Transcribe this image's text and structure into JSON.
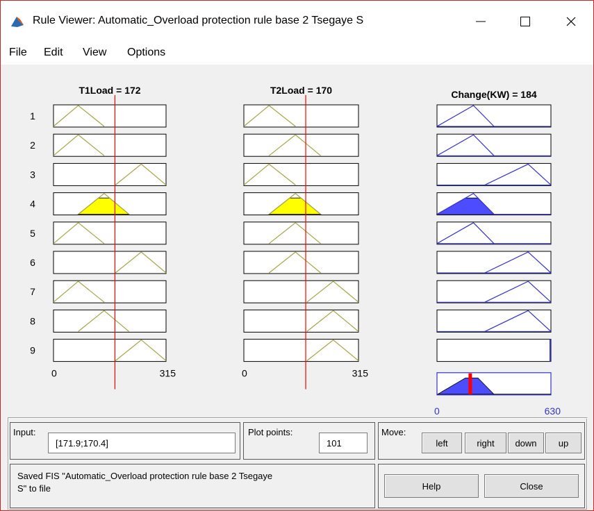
{
  "window": {
    "title": "Rule Viewer: Automatic_Overload protection rule base 2 Tsegaye S",
    "icon": "matlab-icon",
    "controls": [
      "minimize-icon",
      "maximize-icon",
      "close-icon"
    ]
  },
  "menu": [
    "File",
    "Edit",
    "View",
    "Options"
  ],
  "plots": {
    "input1": {
      "label": "T1Load = 172",
      "min": "0",
      "max": "315",
      "value": 172,
      "range": [
        0,
        315
      ]
    },
    "input2": {
      "label": "T2Load = 170",
      "min": "0",
      "max": "315",
      "value": 170,
      "range": [
        0,
        315
      ]
    },
    "output": {
      "label": "Change(KW) = 184",
      "min": "0",
      "max": "630",
      "value": 184,
      "range": [
        0,
        630
      ]
    },
    "rule_numbers": [
      "1",
      "2",
      "3",
      "4",
      "5",
      "6",
      "7",
      "8",
      "9"
    ],
    "rules": [
      {
        "in1": "low",
        "in2": "low",
        "out": "low",
        "firing": 0
      },
      {
        "in1": "low",
        "in2": "mid",
        "out": "low",
        "firing": 0
      },
      {
        "in1": "high",
        "in2": "low",
        "out": "high",
        "firing": 0
      },
      {
        "in1": "mid",
        "in2": "mid",
        "out": "low",
        "firing": 0.78
      },
      {
        "in1": "low",
        "in2": "mid",
        "out": "low",
        "firing": 0
      },
      {
        "in1": "high",
        "in2": "mid",
        "out": "high",
        "firing": 0
      },
      {
        "in1": "low",
        "in2": "high",
        "out": "high",
        "firing": 0
      },
      {
        "in1": "mid",
        "in2": "high",
        "out": "high",
        "firing": 0
      },
      {
        "in1": "high",
        "in2": "high",
        "out": "none",
        "firing": 0
      }
    ],
    "colors": {
      "input_mf": "#a8a34a",
      "input_fill": "#ffff00",
      "output_mf": "#3333cc",
      "output_fill": "#4d4dff",
      "indicator": "#ff0000"
    }
  },
  "controls": {
    "input_label": "Input:",
    "input_value": "[171.9;170.4]",
    "plot_points_label": "Plot points:",
    "plot_points_value": "101",
    "move_label": "Move:",
    "left": "left",
    "right": "right",
    "down": "down",
    "up": "up",
    "status": "Saved FIS \"Automatic_Overload protection rule base 2 Tsegaye S\" to file",
    "help": "Help",
    "close": "Close"
  }
}
